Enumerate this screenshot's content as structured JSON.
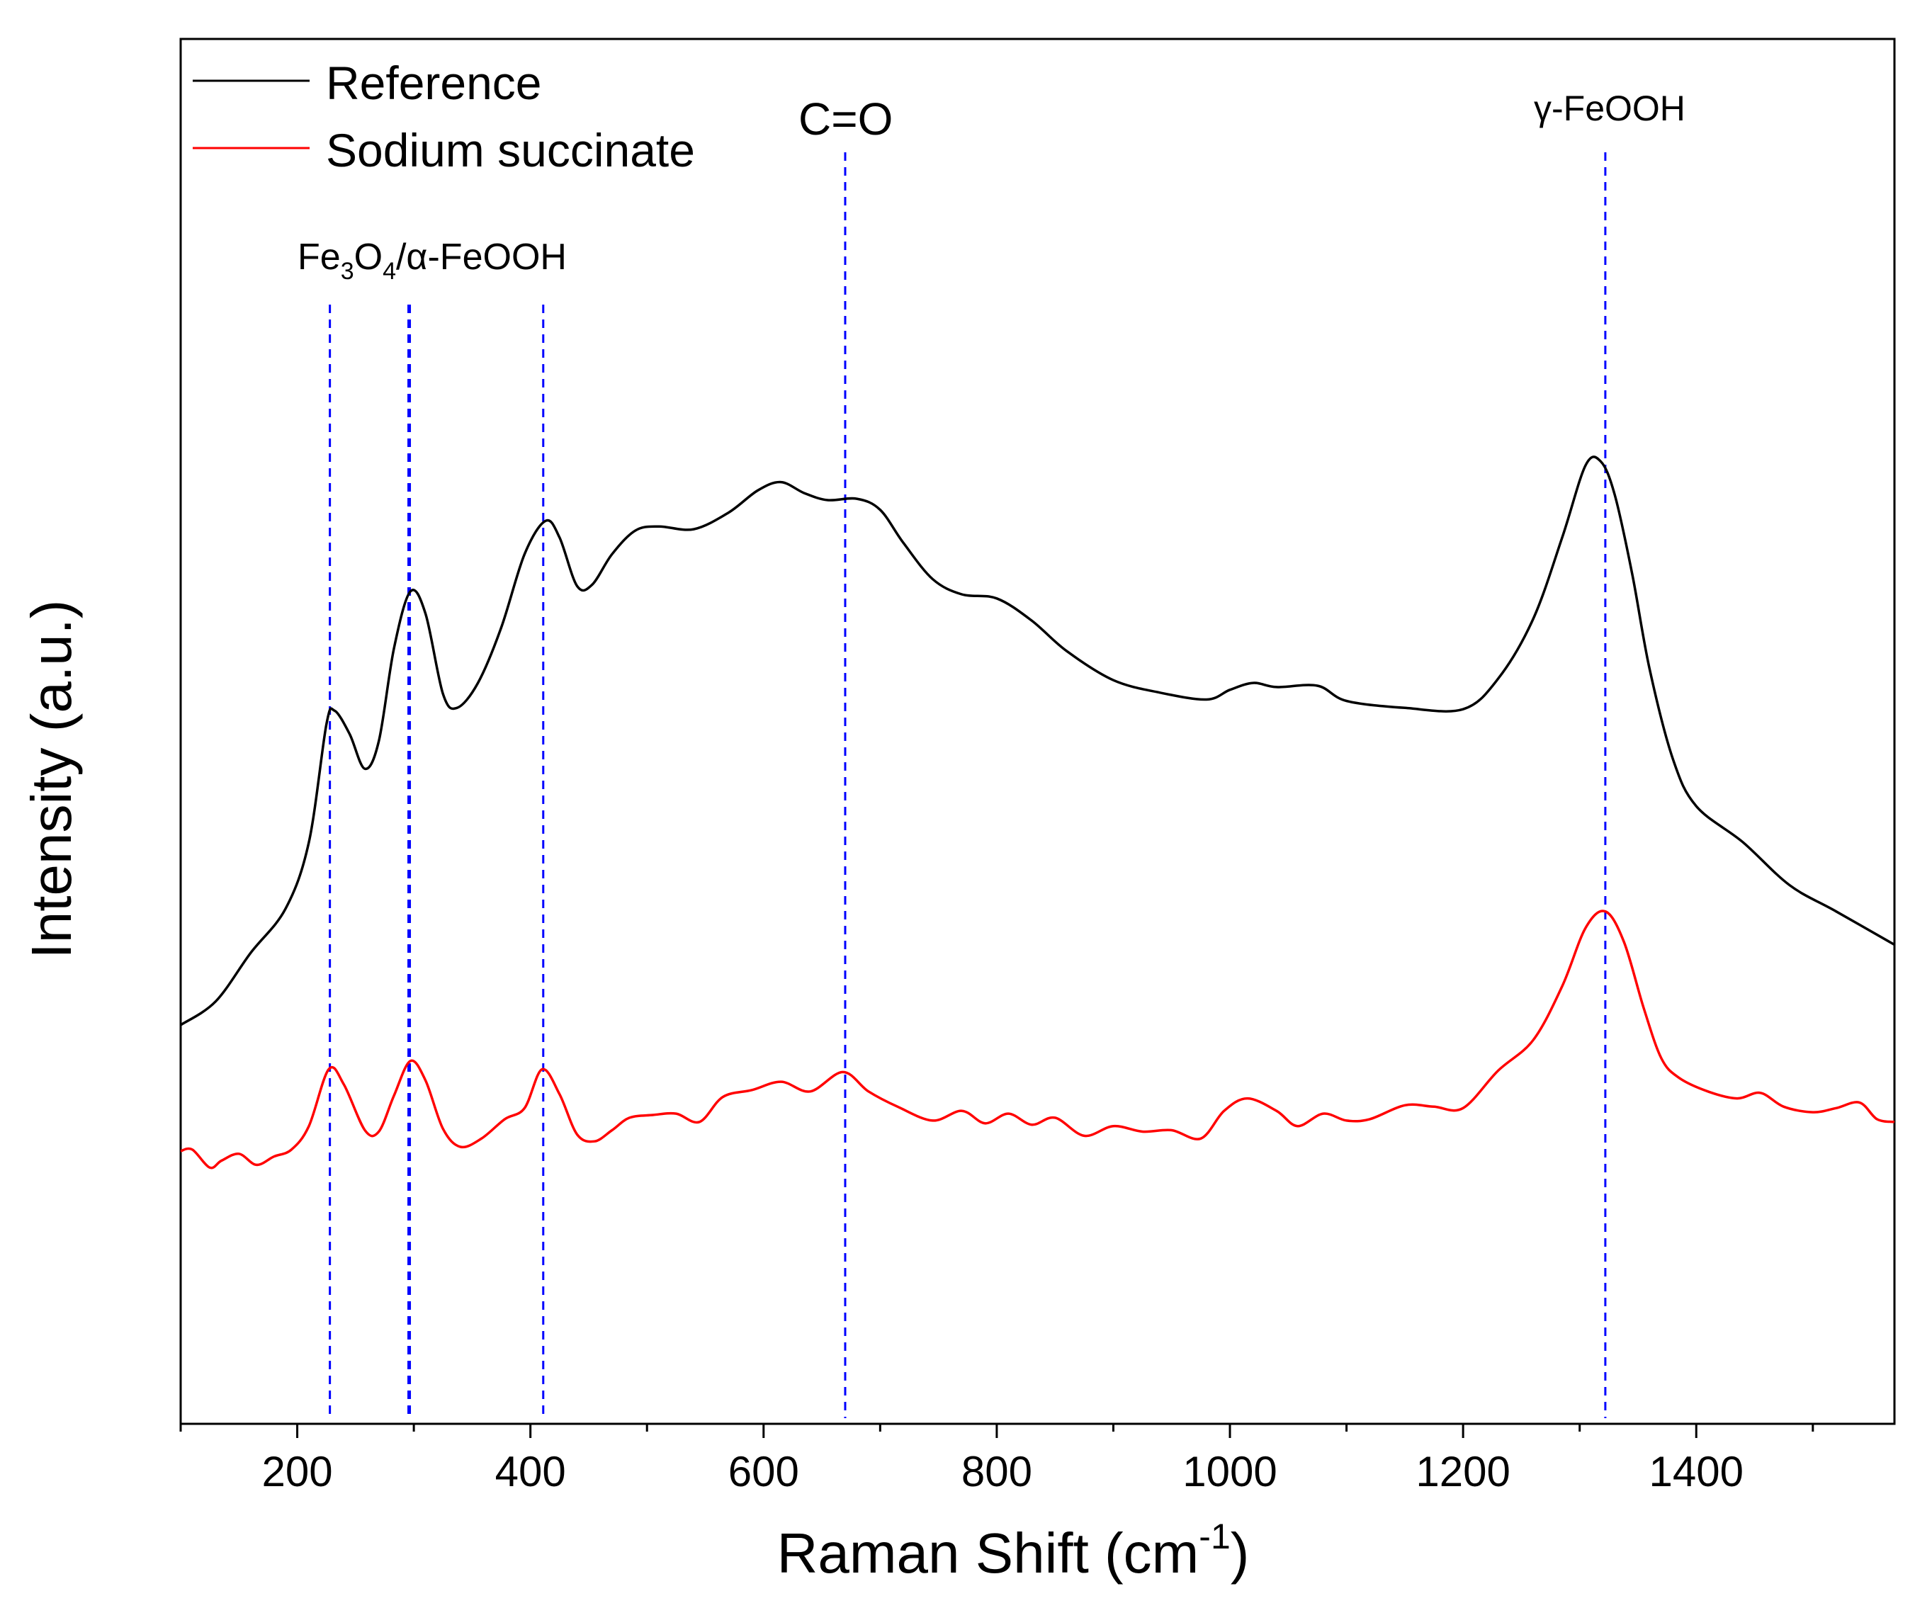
{
  "chart_data": {
    "type": "line",
    "xlabel": "Raman Shift (cm",
    "xlabel_sup": "-1",
    "xlabel_tail": ")",
    "ylabel": "Intensity (a.u.)",
    "xlim": [
      100,
      1570
    ],
    "ylim": [
      0,
      1
    ],
    "x_ticks": [
      200,
      400,
      600,
      800,
      1000,
      1200,
      1400
    ],
    "x_tick_labels": [
      "200",
      "400",
      "600",
      "800",
      "1000",
      "1200",
      "1400"
    ],
    "legend_position": "top-left",
    "series": [
      {
        "name": "Reference",
        "color": "#000000",
        "points": [
          [
            100,
            0.288
          ],
          [
            130,
            0.305
          ],
          [
            160,
            0.34
          ],
          [
            190,
            0.372
          ],
          [
            210,
            0.42
          ],
          [
            225,
            0.505
          ],
          [
            232,
            0.515
          ],
          [
            245,
            0.498
          ],
          [
            258,
            0.473
          ],
          [
            270,
            0.493
          ],
          [
            283,
            0.56
          ],
          [
            297,
            0.601
          ],
          [
            310,
            0.585
          ],
          [
            325,
            0.527
          ],
          [
            337,
            0.517
          ],
          [
            355,
            0.535
          ],
          [
            375,
            0.575
          ],
          [
            395,
            0.628
          ],
          [
            413,
            0.652
          ],
          [
            425,
            0.64
          ],
          [
            440,
            0.605
          ],
          [
            453,
            0.606
          ],
          [
            470,
            0.628
          ],
          [
            490,
            0.645
          ],
          [
            510,
            0.648
          ],
          [
            540,
            0.646
          ],
          [
            570,
            0.658
          ],
          [
            595,
            0.674
          ],
          [
            615,
            0.68
          ],
          [
            635,
            0.672
          ],
          [
            655,
            0.667
          ],
          [
            680,
            0.668
          ],
          [
            700,
            0.66
          ],
          [
            720,
            0.636
          ],
          [
            745,
            0.61
          ],
          [
            770,
            0.599
          ],
          [
            800,
            0.596
          ],
          [
            830,
            0.58
          ],
          [
            860,
            0.558
          ],
          [
            900,
            0.537
          ],
          [
            940,
            0.528
          ],
          [
            980,
            0.523
          ],
          [
            1000,
            0.53
          ],
          [
            1020,
            0.535
          ],
          [
            1040,
            0.532
          ],
          [
            1075,
            0.533
          ],
          [
            1100,
            0.522
          ],
          [
            1150,
            0.517
          ],
          [
            1200,
            0.516
          ],
          [
            1230,
            0.538
          ],
          [
            1260,
            0.581
          ],
          [
            1285,
            0.64
          ],
          [
            1305,
            0.692
          ],
          [
            1318,
            0.695
          ],
          [
            1330,
            0.671
          ],
          [
            1345,
            0.614
          ],
          [
            1360,
            0.545
          ],
          [
            1380,
            0.48
          ],
          [
            1400,
            0.446
          ],
          [
            1440,
            0.42
          ],
          [
            1480,
            0.389
          ],
          [
            1520,
            0.37
          ],
          [
            1570,
            0.346
          ]
        ]
      },
      {
        "name": "Sodium succinate",
        "color": "#ff0000",
        "points": [
          [
            100,
            0.197
          ],
          [
            110,
            0.198
          ],
          [
            125,
            0.185
          ],
          [
            135,
            0.19
          ],
          [
            150,
            0.195
          ],
          [
            165,
            0.187
          ],
          [
            180,
            0.193
          ],
          [
            195,
            0.198
          ],
          [
            210,
            0.215
          ],
          [
            227,
            0.256
          ],
          [
            240,
            0.245
          ],
          [
            258,
            0.212
          ],
          [
            270,
            0.211
          ],
          [
            283,
            0.237
          ],
          [
            297,
            0.262
          ],
          [
            310,
            0.248
          ],
          [
            325,
            0.213
          ],
          [
            340,
            0.2
          ],
          [
            358,
            0.206
          ],
          [
            378,
            0.22
          ],
          [
            395,
            0.228
          ],
          [
            410,
            0.256
          ],
          [
            425,
            0.238
          ],
          [
            440,
            0.209
          ],
          [
            455,
            0.204
          ],
          [
            470,
            0.212
          ],
          [
            485,
            0.221
          ],
          [
            505,
            0.223
          ],
          [
            525,
            0.224
          ],
          [
            545,
            0.218
          ],
          [
            565,
            0.236
          ],
          [
            590,
            0.241
          ],
          [
            615,
            0.247
          ],
          [
            640,
            0.24
          ],
          [
            668,
            0.254
          ],
          [
            690,
            0.24
          ],
          [
            715,
            0.229
          ],
          [
            745,
            0.219
          ],
          [
            770,
            0.226
          ],
          [
            790,
            0.217
          ],
          [
            810,
            0.224
          ],
          [
            830,
            0.216
          ],
          [
            850,
            0.221
          ],
          [
            875,
            0.208
          ],
          [
            900,
            0.215
          ],
          [
            925,
            0.211
          ],
          [
            950,
            0.212
          ],
          [
            975,
            0.206
          ],
          [
            995,
            0.226
          ],
          [
            1015,
            0.235
          ],
          [
            1040,
            0.226
          ],
          [
            1058,
            0.215
          ],
          [
            1080,
            0.224
          ],
          [
            1100,
            0.219
          ],
          [
            1120,
            0.22
          ],
          [
            1150,
            0.23
          ],
          [
            1175,
            0.229
          ],
          [
            1200,
            0.228
          ],
          [
            1230,
            0.255
          ],
          [
            1260,
            0.277
          ],
          [
            1285,
            0.316
          ],
          [
            1305,
            0.358
          ],
          [
            1322,
            0.37
          ],
          [
            1338,
            0.348
          ],
          [
            1355,
            0.3
          ],
          [
            1370,
            0.264
          ],
          [
            1385,
            0.25
          ],
          [
            1410,
            0.24
          ],
          [
            1435,
            0.235
          ],
          [
            1455,
            0.239
          ],
          [
            1475,
            0.229
          ],
          [
            1500,
            0.225
          ],
          [
            1520,
            0.228
          ],
          [
            1540,
            0.232
          ],
          [
            1555,
            0.22
          ],
          [
            1570,
            0.218
          ]
        ]
      }
    ],
    "reference_lines": {
      "color": "#0000ff",
      "x_values": [
        228,
        296,
        411,
        670,
        1322
      ]
    },
    "annotations": [
      {
        "id": "fe3o4",
        "parts": [
          "Fe",
          "3",
          "O",
          "4",
          "/α-FeOOH"
        ]
      },
      {
        "id": "co",
        "text": "C=O"
      },
      {
        "id": "gamma",
        "text": "γ-FeOOH"
      }
    ]
  }
}
